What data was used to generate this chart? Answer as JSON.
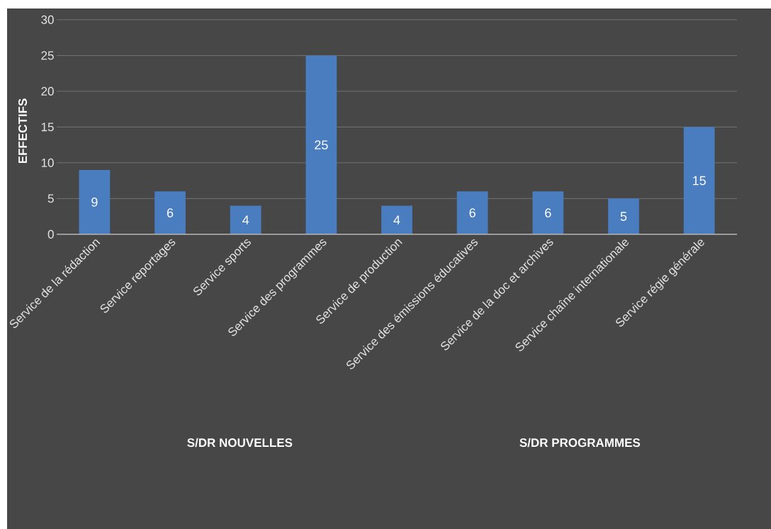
{
  "chart_data": {
    "type": "bar",
    "ylabel": "EFFECTIFS",
    "categories": [
      "Service de la rédaction",
      "Service reportages",
      "Service sports",
      "Service des programmes",
      "Service de production",
      "Service des émissions éducatives",
      "Service de la doc et archives",
      "Service chaîne internationale",
      "Service régie générale"
    ],
    "values": [
      9,
      6,
      4,
      25,
      4,
      6,
      6,
      5,
      15
    ],
    "color": "#4a7cc0",
    "ylim": [
      0,
      30
    ],
    "yticks": [
      0,
      5,
      10,
      15,
      20,
      25,
      30
    ],
    "grid": "y",
    "data_labels": true,
    "annotations": [
      "S/DR NOUVELLES",
      "S/DR PROGRAMMES"
    ]
  }
}
